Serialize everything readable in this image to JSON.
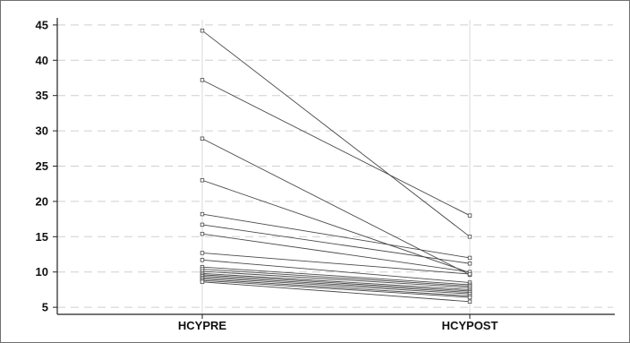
{
  "chart_data": {
    "type": "line",
    "categories": [
      "HCYPRE",
      "HCYPOST"
    ],
    "ylim": [
      4,
      46
    ],
    "y_ticks": [
      "5",
      "10",
      "15",
      "20",
      "25",
      "30",
      "35",
      "40",
      "45"
    ],
    "grid": true,
    "series": [
      {
        "values": [
          44.2,
          15.0
        ]
      },
      {
        "values": [
          37.2,
          18.0
        ]
      },
      {
        "values": [
          28.9,
          9.6
        ]
      },
      {
        "values": [
          23.0,
          9.9
        ]
      },
      {
        "values": [
          18.2,
          12.0
        ]
      },
      {
        "values": [
          16.7,
          11.2
        ]
      },
      {
        "values": [
          15.4,
          10.0
        ]
      },
      {
        "values": [
          12.7,
          9.7
        ]
      },
      {
        "values": [
          11.7,
          8.5
        ]
      },
      {
        "values": [
          10.7,
          8.2
        ]
      },
      {
        "values": [
          10.4,
          8.0
        ]
      },
      {
        "values": [
          10.1,
          7.8
        ]
      },
      {
        "values": [
          9.8,
          7.5
        ]
      },
      {
        "values": [
          9.6,
          7.3
        ]
      },
      {
        "values": [
          9.4,
          7.1
        ]
      },
      {
        "values": [
          9.2,
          6.9
        ]
      },
      {
        "values": [
          9.0,
          6.6
        ]
      },
      {
        "values": [
          8.8,
          6.4
        ]
      },
      {
        "values": [
          8.6,
          5.8
        ]
      }
    ]
  }
}
